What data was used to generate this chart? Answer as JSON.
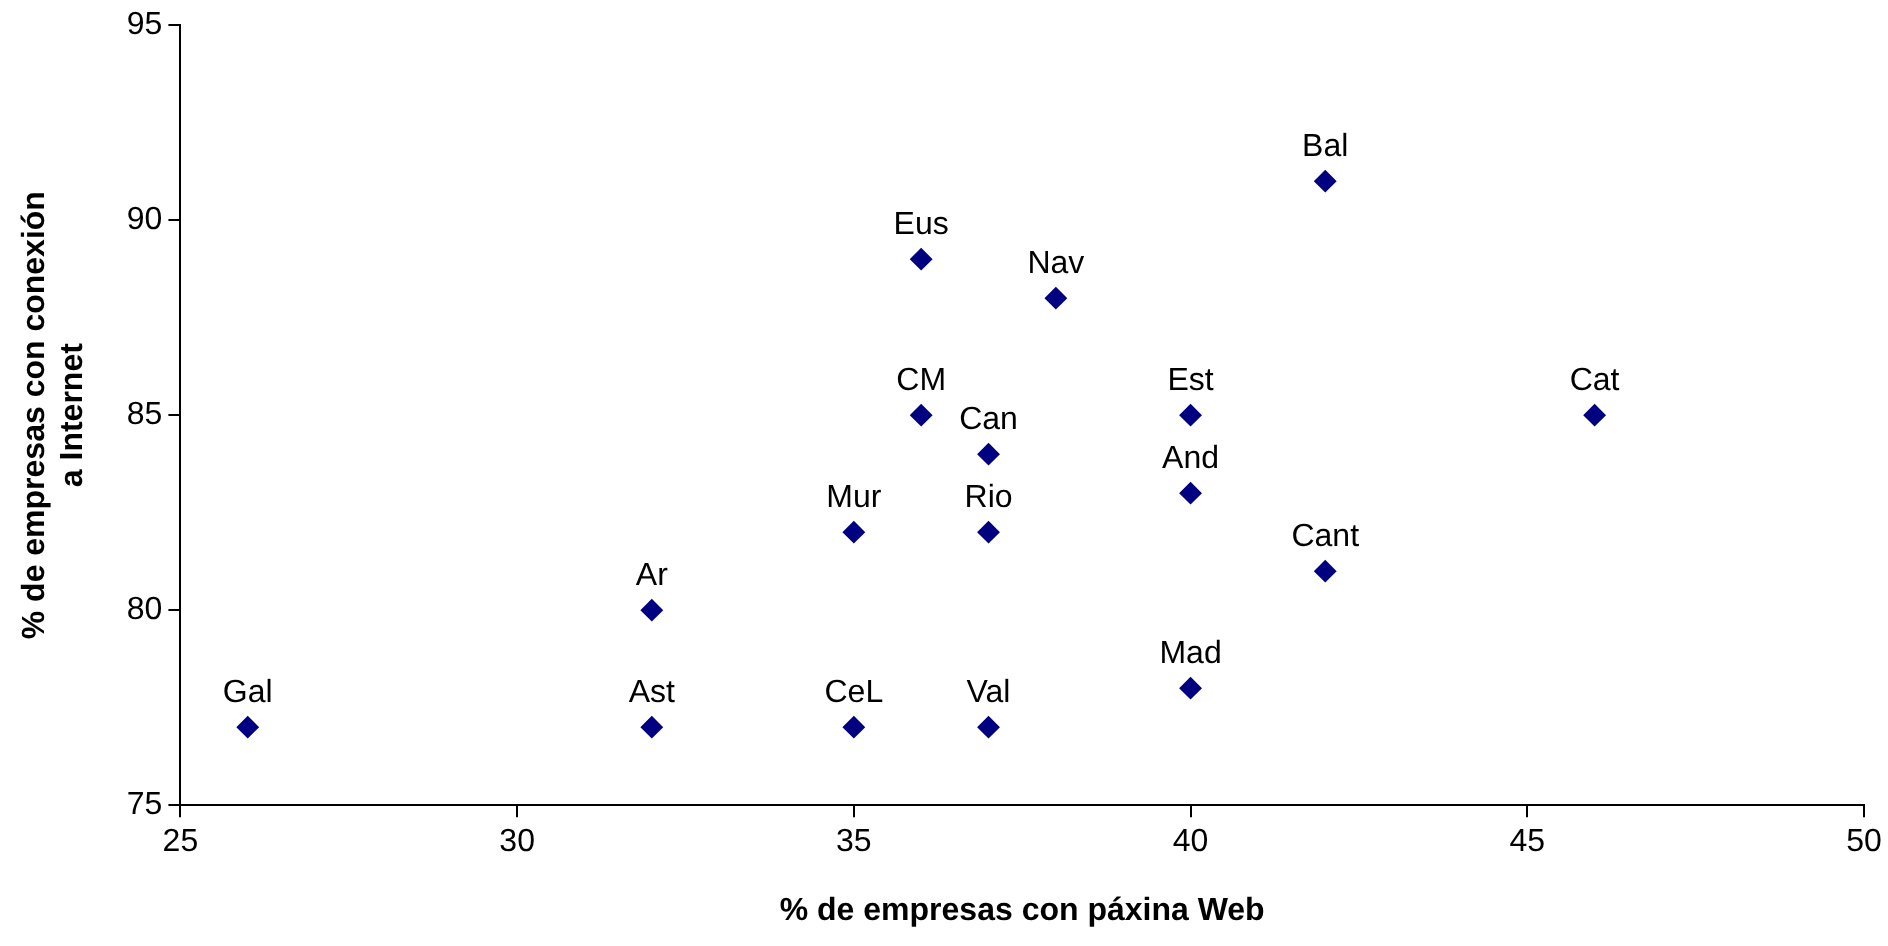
{
  "chart_data": {
    "type": "scatter",
    "xlabel": "% de empresas con páxina Web",
    "ylabel": "% de empresas con conexión a Internet",
    "x": [
      26,
      32,
      32,
      35,
      35,
      36,
      36,
      37,
      37,
      37,
      38,
      40,
      40,
      40,
      42,
      42,
      46
    ],
    "series": [
      {
        "color": "#000080",
        "values": [
          77,
          77,
          80,
          77,
          82,
          85,
          89,
          77,
          82,
          84,
          88,
          78,
          83,
          85,
          81,
          91,
          85
        ]
      }
    ],
    "annotations": [
      {
        "text": "Gal",
        "x": 26,
        "y": 77
      },
      {
        "text": "Ast",
        "x": 32,
        "y": 77
      },
      {
        "text": "Ar",
        "x": 32,
        "y": 80
      },
      {
        "text": "CeL",
        "x": 35,
        "y": 77
      },
      {
        "text": "Mur",
        "x": 35,
        "y": 82
      },
      {
        "text": "CM",
        "x": 36,
        "y": 85
      },
      {
        "text": "Eus",
        "x": 36,
        "y": 89
      },
      {
        "text": "Val",
        "x": 37,
        "y": 77
      },
      {
        "text": "Rio",
        "x": 37,
        "y": 82
      },
      {
        "text": "Can",
        "x": 37,
        "y": 84
      },
      {
        "text": "Nav",
        "x": 38,
        "y": 88
      },
      {
        "text": "Mad",
        "x": 40,
        "y": 78
      },
      {
        "text": "And",
        "x": 40,
        "y": 83
      },
      {
        "text": "Est",
        "x": 40,
        "y": 85
      },
      {
        "text": "Cant",
        "x": 42,
        "y": 81
      },
      {
        "text": "Bal",
        "x": 42,
        "y": 91
      },
      {
        "text": "Cat",
        "x": 46,
        "y": 85
      }
    ],
    "xlim": [
      25,
      50
    ],
    "xticks": [
      25,
      30,
      35,
      40,
      45,
      50
    ],
    "ylim": [
      75,
      95
    ],
    "yticks": [
      75,
      80,
      85,
      90,
      95
    ],
    "grid": false,
    "legend": false,
    "marker": "diamond"
  }
}
